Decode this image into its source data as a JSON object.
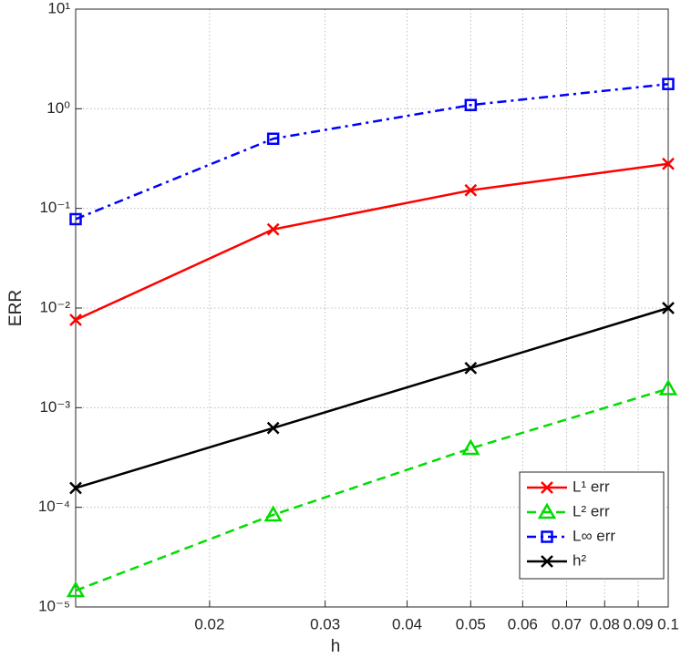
{
  "chart_data": {
    "type": "line",
    "xlabel": "h",
    "ylabel": "ERR",
    "x": [
      0.0125,
      0.025,
      0.05,
      0.1
    ],
    "xscale": "log",
    "yscale": "log",
    "grid": true,
    "legend": "lower right",
    "xlim": [
      0.0125,
      0.1
    ],
    "xticks": [
      0.02,
      0.03,
      0.04,
      0.05,
      0.06,
      0.07,
      0.08,
      0.09,
      0.1
    ],
    "ylim": [
      1e-05,
      10
    ],
    "yticks": [
      {
        "value": 1e-05,
        "label": "10⁻⁵"
      },
      {
        "value": 0.0001,
        "label": "10⁻⁴"
      },
      {
        "value": 0.001,
        "label": "10⁻³"
      },
      {
        "value": 0.01,
        "label": "10⁻²"
      },
      {
        "value": 0.1,
        "label": "10⁻¹"
      },
      {
        "value": 1,
        "label": "10⁰"
      },
      {
        "value": 10,
        "label": "10¹"
      }
    ],
    "series": [
      {
        "name": "L¹ err",
        "color": "#ff0000",
        "marker": "x",
        "dash": "solid",
        "values": [
          0.0076,
          0.0616,
          0.152,
          0.28
        ]
      },
      {
        "name": "L² err",
        "color": "#00dd00",
        "marker": "triangle",
        "dash": "dashed",
        "values": [
          1.46e-05,
          8.4e-05,
          0.00039,
          0.00155
        ]
      },
      {
        "name": "L∞ err",
        "color": "#0000ff",
        "marker": "square",
        "dash": "dashdot",
        "values": [
          0.078,
          0.5,
          1.09,
          1.77
        ]
      },
      {
        "name": "h²",
        "color": "#000000",
        "marker": "x",
        "dash": "solid",
        "values": [
          0.00015625,
          0.000625,
          0.0025,
          0.01
        ]
      }
    ]
  }
}
